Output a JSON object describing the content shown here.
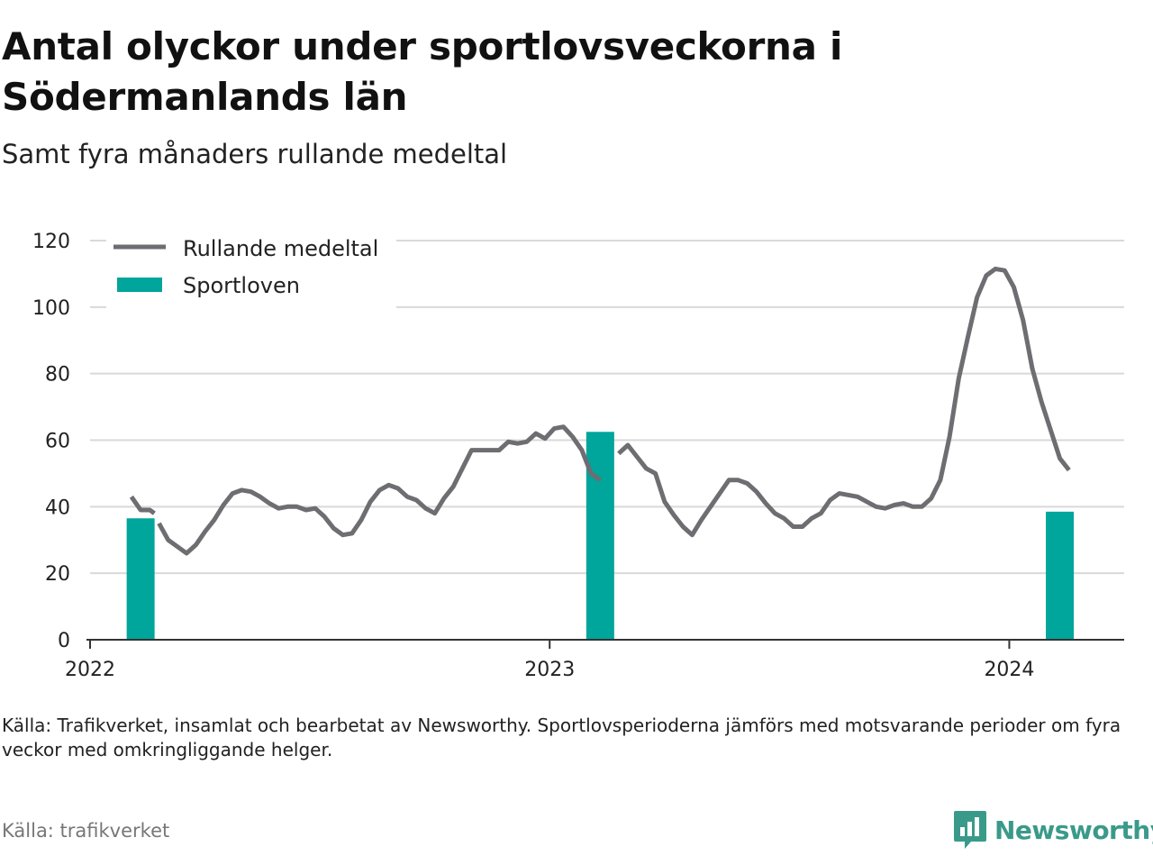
{
  "header": {
    "title": "Antal olyckor under sportlovsveckorna i Södermanlands län",
    "subtitle": "Samt fyra månaders rullande medeltal"
  },
  "footer": {
    "note": "Källa: Trafikverket, insamlat och bearbetat av Newsworthy. Sportlovsperioderna jämförs med motsvarande perioder om fyra veckor med omkringliggande helger.",
    "credit": "Källa: trafikverket",
    "logo_text": "Newsworthy"
  },
  "colors": {
    "line": "#6d6d72",
    "bar": "#00a59b",
    "grid": "#d9d9d9",
    "logo": "#3a9a8a"
  },
  "chart_data": {
    "type": "bar+line",
    "legend": {
      "position": "top-left",
      "items": [
        "Rullande medeltal",
        "Sportloven"
      ]
    },
    "ylim": [
      0,
      120
    ],
    "yticks": [
      0,
      20,
      40,
      60,
      80,
      100,
      120
    ],
    "xlim": [
      2022.0,
      2024.25
    ],
    "xticks": [
      {
        "value": 2022,
        "label": "2022"
      },
      {
        "value": 2023,
        "label": "2023"
      },
      {
        "value": 2024,
        "label": "2024"
      }
    ],
    "grid": true,
    "series": [
      {
        "name": "Rullande medeltal",
        "type": "line",
        "segments": [
          [
            [
              2022.09,
              43
            ],
            [
              2022.11,
              39
            ],
            [
              2022.13,
              39
            ],
            [
              2022.14,
              38
            ]
          ],
          [
            [
              2022.15,
              35
            ],
            [
              2022.17,
              30
            ],
            [
              2022.19,
              28
            ],
            [
              2022.21,
              26
            ],
            [
              2022.23,
              28.5
            ],
            [
              2022.25,
              32.5
            ],
            [
              2022.27,
              36
            ],
            [
              2022.29,
              40.5
            ],
            [
              2022.31,
              44
            ],
            [
              2022.33,
              45
            ],
            [
              2022.35,
              44.5
            ],
            [
              2022.37,
              43
            ],
            [
              2022.39,
              41
            ],
            [
              2022.41,
              39.5
            ],
            [
              2022.43,
              40
            ],
            [
              2022.45,
              40
            ],
            [
              2022.47,
              39
            ],
            [
              2022.49,
              39.5
            ],
            [
              2022.51,
              37
            ],
            [
              2022.53,
              33.5
            ],
            [
              2022.55,
              31.5
            ],
            [
              2022.57,
              32
            ],
            [
              2022.59,
              36
            ],
            [
              2022.61,
              41.5
            ],
            [
              2022.63,
              45
            ],
            [
              2022.65,
              46.5
            ],
            [
              2022.67,
              45.5
            ],
            [
              2022.69,
              43
            ],
            [
              2022.71,
              42
            ],
            [
              2022.73,
              39.5
            ],
            [
              2022.75,
              38
            ],
            [
              2022.77,
              42.5
            ],
            [
              2022.79,
              46
            ],
            [
              2022.81,
              51.5
            ],
            [
              2022.83,
              57
            ],
            [
              2022.85,
              57
            ],
            [
              2022.87,
              57
            ],
            [
              2022.89,
              57
            ],
            [
              2022.91,
              59.5
            ],
            [
              2022.93,
              59
            ],
            [
              2022.95,
              59.5
            ],
            [
              2022.97,
              62
            ],
            [
              2022.99,
              60.5
            ],
            [
              2023.01,
              63.5
            ],
            [
              2023.03,
              64
            ],
            [
              2023.05,
              61
            ],
            [
              2023.07,
              57
            ],
            [
              2023.09,
              50
            ],
            [
              2023.11,
              48
            ]
          ],
          [
            [
              2023.15,
              56
            ],
            [
              2023.17,
              58.5
            ],
            [
              2023.19,
              55
            ],
            [
              2023.21,
              51.5
            ],
            [
              2023.23,
              50
            ],
            [
              2023.25,
              41.5
            ],
            [
              2023.27,
              37.5
            ],
            [
              2023.29,
              34
            ],
            [
              2023.31,
              31.5
            ],
            [
              2023.33,
              36
            ],
            [
              2023.35,
              40
            ],
            [
              2023.37,
              44
            ],
            [
              2023.39,
              48
            ],
            [
              2023.41,
              48
            ],
            [
              2023.43,
              47
            ],
            [
              2023.45,
              44.5
            ],
            [
              2023.47,
              41
            ],
            [
              2023.49,
              38
            ],
            [
              2023.51,
              36.5
            ],
            [
              2023.53,
              34
            ],
            [
              2023.55,
              34
            ],
            [
              2023.57,
              36.5
            ],
            [
              2023.59,
              38
            ],
            [
              2023.61,
              42
            ],
            [
              2023.63,
              44
            ],
            [
              2023.65,
              43.5
            ],
            [
              2023.67,
              43
            ],
            [
              2023.69,
              41.5
            ],
            [
              2023.71,
              40
            ],
            [
              2023.73,
              39.5
            ],
            [
              2023.75,
              40.5
            ],
            [
              2023.77,
              41
            ],
            [
              2023.79,
              40
            ],
            [
              2023.81,
              40
            ],
            [
              2023.83,
              42.5
            ],
            [
              2023.85,
              48
            ],
            [
              2023.87,
              61
            ],
            [
              2023.89,
              78.5
            ],
            [
              2023.91,
              91
            ],
            [
              2023.93,
              103
            ],
            [
              2023.95,
              109.5
            ],
            [
              2023.97,
              111.5
            ],
            [
              2023.99,
              111
            ],
            [
              2024.01,
              106
            ],
            [
              2024.03,
              96
            ],
            [
              2024.05,
              81.5
            ],
            [
              2024.07,
              71.5
            ],
            [
              2024.09,
              63
            ],
            [
              2024.11,
              54.5
            ],
            [
              2024.13,
              51
            ]
          ]
        ]
      },
      {
        "name": "Sportloven",
        "type": "bar",
        "x": [
          2022.11,
          2023.11,
          2024.11
        ],
        "values": [
          36.5,
          62.5,
          38.5
        ]
      }
    ]
  }
}
